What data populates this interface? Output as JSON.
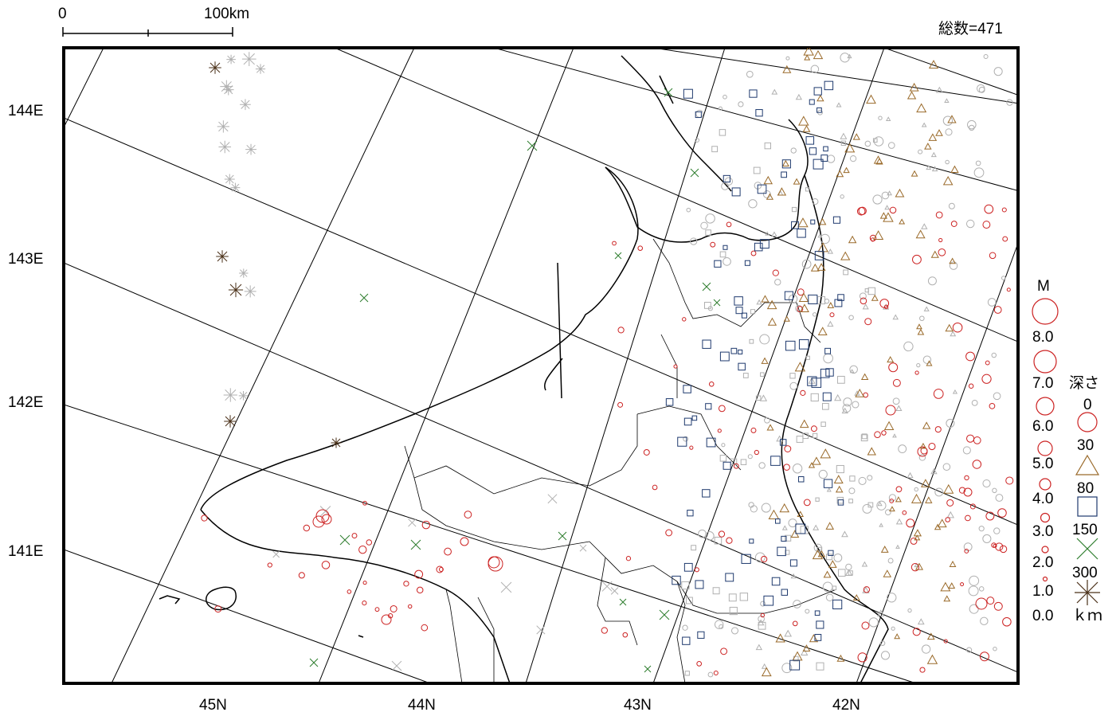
{
  "scale_bar": {
    "start_label": "0",
    "end_label": "100km"
  },
  "total": "総数=471",
  "lat_labels": [
    "45N",
    "44N",
    "43N",
    "42N"
  ],
  "lon_labels": [
    "144E",
    "143E",
    "142E",
    "141E"
  ],
  "legend": {
    "magnitude_title": "M",
    "magnitudes": [
      "8.0",
      "7.0",
      "6.0",
      "5.0",
      "4.0",
      "3.0",
      "2.0",
      "1.0",
      "0.0"
    ],
    "depth_title": "深さ",
    "depths": [
      "0",
      "30",
      "80",
      "150",
      "300"
    ],
    "depth_unit": "ｋｍ",
    "colors": {
      "d0_30": "#cc2222",
      "d30_80": "#9a6a2a",
      "d80_150": "#1f3a6e",
      "d150_300": "#2e7d2e",
      "d300": "#4a3018",
      "older": "#b0b0b0"
    }
  }
}
